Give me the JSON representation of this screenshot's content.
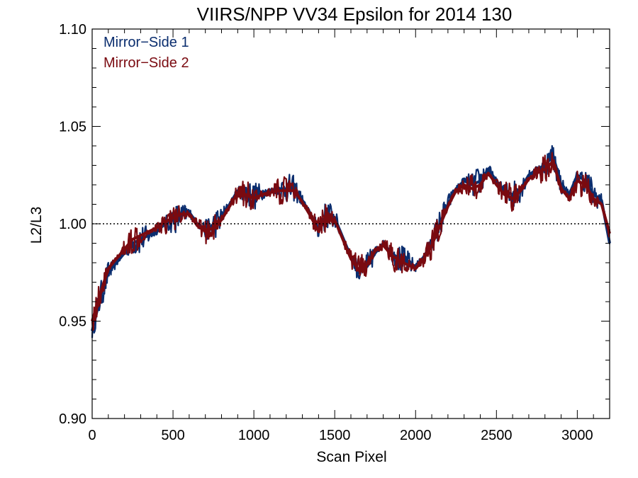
{
  "chart_data": {
    "type": "line",
    "title": "VIIRS/NPP VV34 Epsilon for 2014 130",
    "xlabel": "Scan Pixel",
    "ylabel": "L2/L3",
    "xlim": [
      0,
      3200
    ],
    "ylim": [
      0.9,
      1.1
    ],
    "xticks": [
      0,
      500,
      1000,
      1500,
      2000,
      2500,
      3000
    ],
    "xtick_labels": [
      "0",
      "500",
      "1000",
      "1500",
      "2000",
      "2500",
      "3000"
    ],
    "yticks": [
      0.9,
      0.95,
      1.0,
      1.05,
      1.1
    ],
    "ytick_labels": [
      "0.90",
      "0.95",
      "1.00",
      "1.05",
      "1.10"
    ],
    "reference_line": {
      "y": 1.0,
      "style": "dotted"
    },
    "grid": false,
    "legend_position": "top-left",
    "series": [
      {
        "name": "Mirror−Side 1",
        "color": "#0a2d6e",
        "x": [
          0,
          50,
          100,
          150,
          200,
          250,
          300,
          350,
          400,
          450,
          500,
          550,
          600,
          650,
          700,
          750,
          800,
          850,
          900,
          950,
          1000,
          1050,
          1100,
          1150,
          1200,
          1250,
          1300,
          1350,
          1400,
          1450,
          1500,
          1550,
          1600,
          1650,
          1700,
          1750,
          1800,
          1850,
          1900,
          1950,
          2000,
          2050,
          2100,
          2150,
          2200,
          2250,
          2300,
          2350,
          2400,
          2450,
          2500,
          2550,
          2600,
          2650,
          2700,
          2750,
          2800,
          2850,
          2900,
          2950,
          3000,
          3050,
          3100,
          3150,
          3200
        ],
        "y": [
          0.945,
          0.962,
          0.975,
          0.98,
          0.985,
          0.99,
          0.992,
          0.994,
          0.996,
          1.0,
          1.002,
          1.004,
          1.006,
          1.0,
          0.997,
          0.999,
          1.003,
          1.01,
          1.017,
          1.016,
          1.014,
          1.016,
          1.017,
          1.018,
          1.018,
          1.018,
          1.012,
          1.005,
          0.997,
          1.005,
          1.003,
          0.993,
          0.983,
          0.975,
          0.978,
          0.985,
          0.99,
          0.985,
          0.982,
          0.98,
          0.978,
          0.983,
          0.99,
          1.0,
          1.01,
          1.018,
          1.022,
          1.02,
          1.022,
          1.028,
          1.022,
          1.017,
          1.015,
          1.018,
          1.025,
          1.028,
          1.03,
          1.035,
          1.02,
          1.015,
          1.025,
          1.022,
          1.015,
          1.012,
          0.99
        ]
      },
      {
        "name": "Mirror−Side 2",
        "color": "#7a0a10",
        "x": [
          0,
          50,
          100,
          150,
          200,
          250,
          300,
          350,
          400,
          450,
          500,
          550,
          600,
          650,
          700,
          750,
          800,
          850,
          900,
          950,
          1000,
          1050,
          1100,
          1150,
          1200,
          1250,
          1300,
          1350,
          1400,
          1450,
          1500,
          1550,
          1600,
          1650,
          1700,
          1750,
          1800,
          1850,
          1900,
          1950,
          2000,
          2050,
          2100,
          2150,
          2200,
          2250,
          2300,
          2350,
          2400,
          2450,
          2500,
          2550,
          2600,
          2650,
          2700,
          2750,
          2800,
          2850,
          2900,
          2950,
          3000,
          3050,
          3100,
          3150,
          3200
        ],
        "y": [
          0.95,
          0.964,
          0.977,
          0.982,
          0.987,
          0.992,
          0.994,
          0.996,
          0.998,
          1.001,
          1.003,
          1.005,
          1.005,
          0.999,
          0.996,
          0.998,
          1.002,
          1.009,
          1.016,
          1.015,
          1.013,
          1.015,
          1.016,
          1.017,
          1.017,
          1.017,
          1.011,
          1.004,
          0.996,
          1.004,
          1.002,
          0.992,
          0.982,
          0.976,
          0.979,
          0.986,
          0.989,
          0.984,
          0.981,
          0.979,
          0.977,
          0.982,
          0.989,
          0.999,
          1.009,
          1.017,
          1.02,
          1.018,
          1.02,
          1.026,
          1.02,
          1.015,
          1.013,
          1.017,
          1.023,
          1.026,
          1.028,
          1.032,
          1.018,
          1.013,
          1.022,
          1.02,
          1.013,
          1.01,
          0.995
        ]
      }
    ]
  }
}
